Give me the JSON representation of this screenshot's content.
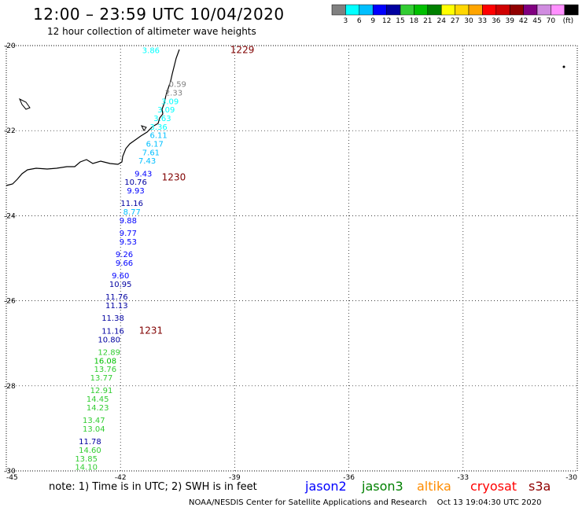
{
  "header": {
    "title": "12:00 – 23:59 UTC 10/04/2020",
    "subtitle": "12 hour collection of altimeter wave heights"
  },
  "legend": {
    "unit": "(ft)",
    "items": [
      {
        "label": "",
        "color": "#808080"
      },
      {
        "label": "3",
        "color": "#00ffff"
      },
      {
        "label": "6",
        "color": "#00bfff"
      },
      {
        "label": "9",
        "color": "#0000ff"
      },
      {
        "label": "12",
        "color": "#0000a0"
      },
      {
        "label": "15",
        "color": "#32cd32"
      },
      {
        "label": "18",
        "color": "#00c000"
      },
      {
        "label": "21",
        "color": "#008000"
      },
      {
        "label": "24",
        "color": "#ffff00"
      },
      {
        "label": "27",
        "color": "#ffd700"
      },
      {
        "label": "30",
        "color": "#ffa500"
      },
      {
        "label": "33",
        "color": "#ff0000"
      },
      {
        "label": "36",
        "color": "#d00000"
      },
      {
        "label": "39",
        "color": "#900000"
      },
      {
        "label": "42",
        "color": "#800080"
      },
      {
        "label": "45",
        "color": "#d08ce0"
      },
      {
        "label": "70",
        "color": "#ff90ff"
      },
      {
        "label": "",
        "color": "#000000"
      }
    ]
  },
  "axes": {
    "lat_min": -30,
    "lat_max": -20,
    "lon_min": -45,
    "lon_max": -30,
    "lat_ticks": [
      "-20",
      "-22",
      "-24",
      "-26",
      "-28",
      "-30"
    ],
    "lon_ticks": [
      "-45",
      "-42",
      "-39",
      "-36",
      "-33",
      "-30"
    ]
  },
  "times": [
    {
      "label": "1229",
      "lon": -38.8,
      "lat": -20.1
    },
    {
      "label": "1230",
      "lon": -40.6,
      "lat": -23.1
    },
    {
      "label": "1231",
      "lon": -41.2,
      "lat": -26.7
    }
  ],
  "observations": [
    {
      "value": "3.86",
      "lon": -41.2,
      "lat": -20.1,
      "color": "#00ffff"
    },
    {
      "value": "0.59",
      "lon": -40.5,
      "lat": -20.9,
      "color": "#808080"
    },
    {
      "value": "2.33",
      "lon": -40.6,
      "lat": -21.1,
      "color": "#808080"
    },
    {
      "value": "3.09",
      "lon": -40.7,
      "lat": -21.3,
      "color": "#00ffff"
    },
    {
      "value": "3.09",
      "lon": -40.8,
      "lat": -21.5,
      "color": "#00ffff"
    },
    {
      "value": "3.63",
      "lon": -40.9,
      "lat": -21.7,
      "color": "#00ffff"
    },
    {
      "value": "3.36",
      "lon": -41.0,
      "lat": -21.9,
      "color": "#00ffff"
    },
    {
      "value": "6.11",
      "lon": -41.0,
      "lat": -22.1,
      "color": "#00bfff"
    },
    {
      "value": "6.17",
      "lon": -41.1,
      "lat": -22.3,
      "color": "#00bfff"
    },
    {
      "value": "7.61",
      "lon": -41.2,
      "lat": -22.5,
      "color": "#00bfff"
    },
    {
      "value": "7.43",
      "lon": -41.3,
      "lat": -22.7,
      "color": "#00bfff"
    },
    {
      "value": "9.43",
      "lon": -41.4,
      "lat": -23.0,
      "color": "#0000ff"
    },
    {
      "value": "10.76",
      "lon": -41.6,
      "lat": -23.2,
      "color": "#0000a0"
    },
    {
      "value": "9.93",
      "lon": -41.6,
      "lat": -23.4,
      "color": "#0000ff"
    },
    {
      "value": "11.16",
      "lon": -41.7,
      "lat": -23.7,
      "color": "#0000a0"
    },
    {
      "value": "8.77",
      "lon": -41.7,
      "lat": -23.9,
      "color": "#00bfff"
    },
    {
      "value": "9.88",
      "lon": -41.8,
      "lat": -24.1,
      "color": "#0000ff"
    },
    {
      "value": "9.77",
      "lon": -41.8,
      "lat": -24.4,
      "color": "#0000ff"
    },
    {
      "value": "9.53",
      "lon": -41.8,
      "lat": -24.6,
      "color": "#0000ff"
    },
    {
      "value": "9.26",
      "lon": -41.9,
      "lat": -24.9,
      "color": "#0000ff"
    },
    {
      "value": "9.66",
      "lon": -41.9,
      "lat": -25.1,
      "color": "#0000ff"
    },
    {
      "value": "9.60",
      "lon": -42.0,
      "lat": -25.4,
      "color": "#0000ff"
    },
    {
      "value": "10.95",
      "lon": -42.0,
      "lat": -25.6,
      "color": "#0000a0"
    },
    {
      "value": "11.76",
      "lon": -42.1,
      "lat": -25.9,
      "color": "#0000a0"
    },
    {
      "value": "11.13",
      "lon": -42.1,
      "lat": -26.1,
      "color": "#0000a0"
    },
    {
      "value": "11.38",
      "lon": -42.2,
      "lat": -26.4,
      "color": "#0000a0"
    },
    {
      "value": "11.16",
      "lon": -42.2,
      "lat": -26.7,
      "color": "#0000a0"
    },
    {
      "value": "10.80",
      "lon": -42.3,
      "lat": -26.9,
      "color": "#0000a0"
    },
    {
      "value": "12.89",
      "lon": -42.3,
      "lat": -27.2,
      "color": "#32cd32"
    },
    {
      "value": "16.08",
      "lon": -42.4,
      "lat": -27.4,
      "color": "#00c000"
    },
    {
      "value": "13.76",
      "lon": -42.4,
      "lat": -27.6,
      "color": "#32cd32"
    },
    {
      "value": "13.77",
      "lon": -42.5,
      "lat": -27.8,
      "color": "#32cd32"
    },
    {
      "value": "12.91",
      "lon": -42.5,
      "lat": -28.1,
      "color": "#32cd32"
    },
    {
      "value": "14.45",
      "lon": -42.6,
      "lat": -28.3,
      "color": "#32cd32"
    },
    {
      "value": "14.23",
      "lon": -42.6,
      "lat": -28.5,
      "color": "#32cd32"
    },
    {
      "value": "13.47",
      "lon": -42.7,
      "lat": -28.8,
      "color": "#32cd32"
    },
    {
      "value": "13.04",
      "lon": -42.7,
      "lat": -29.0,
      "color": "#32cd32"
    },
    {
      "value": "11.78",
      "lon": -42.8,
      "lat": -29.3,
      "color": "#0000a0"
    },
    {
      "value": "14.60",
      "lon": -42.8,
      "lat": -29.5,
      "color": "#32cd32"
    },
    {
      "value": "13.85",
      "lon": -42.9,
      "lat": -29.7,
      "color": "#32cd32"
    },
    {
      "value": "14.10",
      "lon": -42.9,
      "lat": -29.9,
      "color": "#32cd32"
    }
  ],
  "footer": {
    "note": "note: 1) Time is in UTC; 2) SWH is in feet",
    "missions": [
      {
        "name": "jason2",
        "color": "#0000ff"
      },
      {
        "name": "jason3",
        "color": "#008000"
      },
      {
        "name": "altika",
        "color": "#ff8c00"
      },
      {
        "name": "cryosat",
        "color": "#ff0000"
      },
      {
        "name": "s3a",
        "color": "#900000"
      }
    ],
    "credit": "NOAA/NESDIS Center for Satellite Applications and Research",
    "timestamp": "Oct 13 19:04:30 UTC 2020"
  }
}
